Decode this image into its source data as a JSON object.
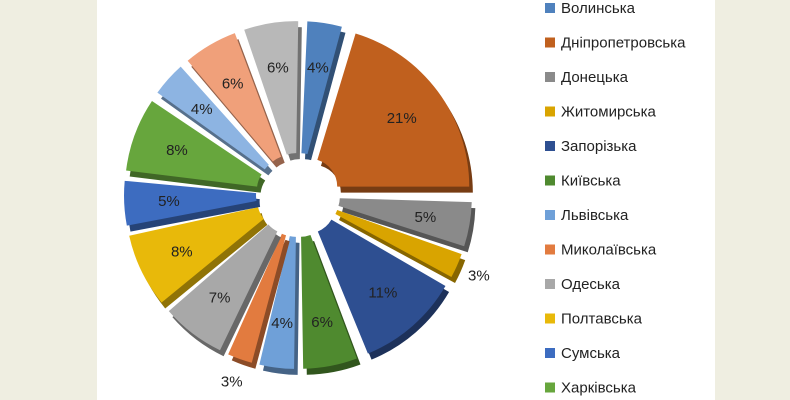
{
  "chart_data": {
    "type": "pie",
    "title": "",
    "categories": [
      "Волинська",
      "Дніпропетровська",
      "Донецька",
      "Житомирська",
      "Запорізька",
      "Київська",
      "Львівська",
      "Миколаївська",
      "Одеська",
      "Полтавська",
      "Сумська",
      "Харківська",
      "",
      "",
      "",
      "",
      ""
    ],
    "values": [
      4,
      21,
      5,
      3,
      11,
      6,
      4,
      3,
      7,
      8,
      5,
      8,
      4,
      6,
      6,
      0,
      0
    ],
    "labels": [
      "4%",
      "21%",
      "5%",
      "3%",
      "11%",
      "6%",
      "4%",
      "3%",
      "7%",
      "8%",
      "5%",
      "8%",
      "4%",
      "6%",
      "6%"
    ],
    "legend": {
      "placement": "right",
      "entries": [
        {
          "label": "Волинська",
          "color": "#4f81bd"
        },
        {
          "label": "Дніпропетровська",
          "color": "#c0601e"
        },
        {
          "label": "Донецька",
          "color": "#8a8a8a"
        },
        {
          "label": "Житомирська",
          "color": "#d9a400"
        },
        {
          "label": "Запорізька",
          "color": "#2e4f91"
        },
        {
          "label": "Київська",
          "color": "#4f8a2f"
        },
        {
          "label": "Львівська",
          "color": "#6fa0d8"
        },
        {
          "label": "Миколаївська",
          "color": "#e27b3f"
        },
        {
          "label": "Одеська",
          "color": "#a8a8a8"
        },
        {
          "label": "Полтавська",
          "color": "#e8b90a"
        },
        {
          "label": "Сумська",
          "color": "#3d6cc0"
        },
        {
          "label": "Харківська",
          "color": "#67a63d"
        }
      ]
    },
    "colors": [
      "#4f81bd",
      "#c0601e",
      "#8a8a8a",
      "#d9a400",
      "#2e4f91",
      "#4f8a2f",
      "#6fa0d8",
      "#e27b3f",
      "#a8a8a8",
      "#e8b90a",
      "#3d6cc0",
      "#67a63d",
      "#8db4e2",
      "#f0a07a",
      "#b8b8b8",
      "#ffffff",
      "#ffffff"
    ]
  }
}
